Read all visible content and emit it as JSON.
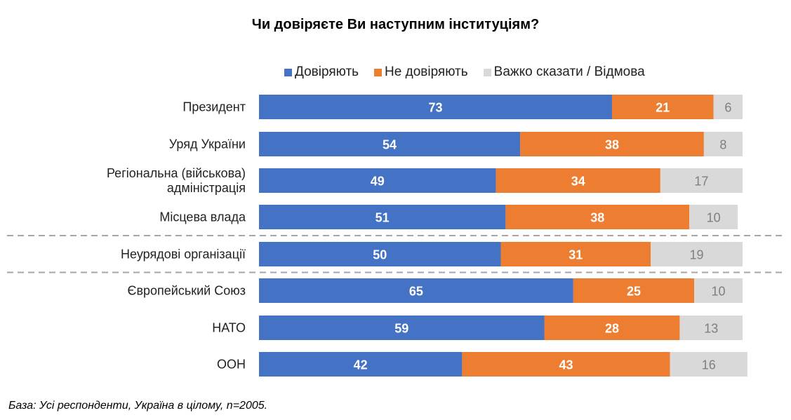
{
  "chart_data": {
    "type": "bar",
    "stacked": true,
    "orientation": "horizontal",
    "title": "Чи довіряєте Ви наступним інституціям?",
    "categories": [
      "Президент",
      "Уряд України",
      "Регіональна (військова)\nадміністрація",
      "Місцева влада",
      "Неурядові організації",
      "Європейський Союз",
      "НАТО",
      "ООН"
    ],
    "series": [
      {
        "name": "Довіряють",
        "color": "#4472C4",
        "values": [
          73,
          54,
          49,
          51,
          50,
          65,
          59,
          42
        ]
      },
      {
        "name": "Не довіряють",
        "color": "#ED7D31",
        "values": [
          21,
          38,
          34,
          38,
          31,
          25,
          28,
          43
        ]
      },
      {
        "name": "Важко сказати / Відмова",
        "color": "#D9D9D9",
        "values": [
          6,
          8,
          17,
          10,
          19,
          10,
          13,
          16
        ]
      }
    ],
    "xlim": [
      0,
      100
    ],
    "legend": "top",
    "group_separators_after": [
      3,
      4
    ]
  },
  "footer": "База: Усі респонденти, Україна в цілому, n=2005."
}
